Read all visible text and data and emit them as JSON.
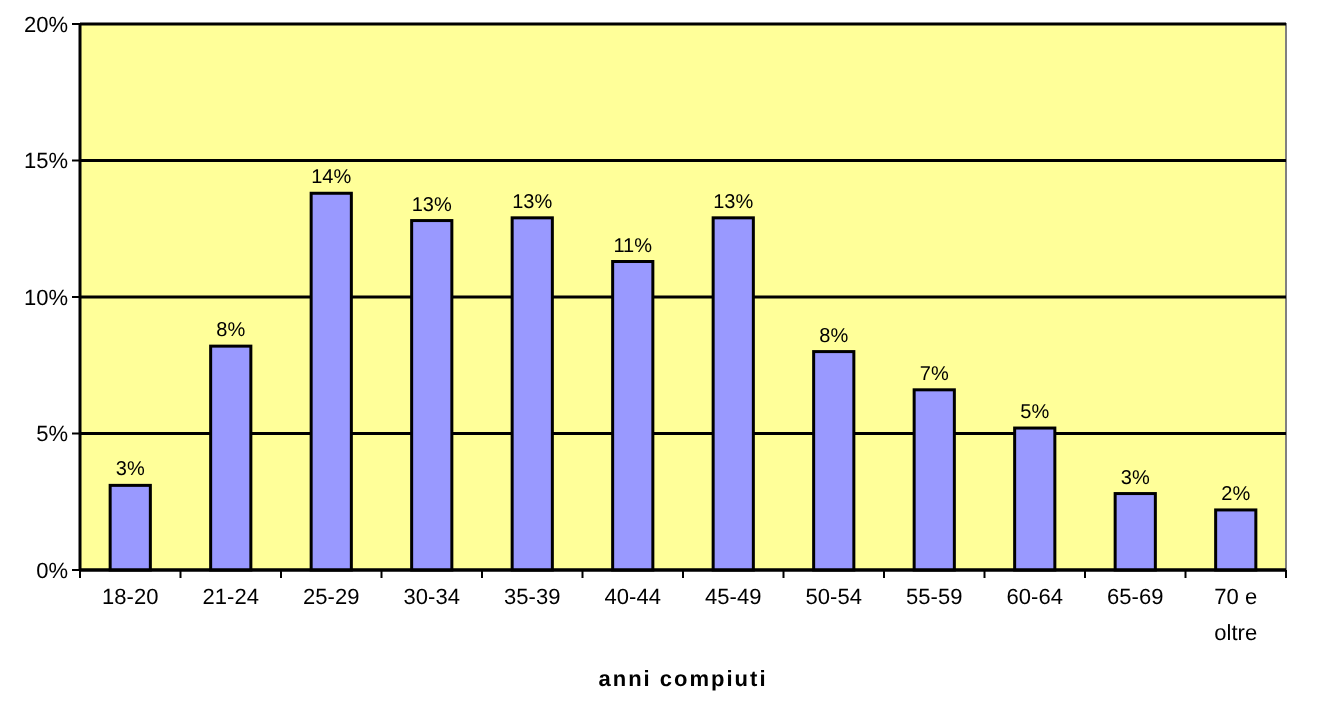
{
  "chart_data": {
    "type": "bar",
    "xlabel": "anni compiuti",
    "categories": [
      "18-20",
      "21-24",
      "25-29",
      "30-34",
      "35-39",
      "40-44",
      "45-49",
      "50-54",
      "55-59",
      "60-64",
      "65-69",
      "70 e oltre"
    ],
    "values": [
      3.1,
      8.2,
      13.8,
      12.8,
      12.9,
      11.3,
      12.9,
      8.0,
      6.6,
      5.2,
      2.8,
      2.2
    ],
    "value_labels": [
      "3%",
      "8%",
      "14%",
      "13%",
      "13%",
      "11%",
      "13%",
      "8%",
      "7%",
      "5%",
      "3%",
      "2%"
    ],
    "color": "#9999ff",
    "ylim": [
      0,
      20
    ],
    "yticks": [
      {
        "value": 0,
        "label": "0%"
      },
      {
        "value": 5,
        "label": "5%"
      },
      {
        "value": 10,
        "label": "10%"
      },
      {
        "value": 15,
        "label": "15%"
      },
      {
        "value": 20,
        "label": "20%"
      }
    ],
    "grid": "y"
  }
}
